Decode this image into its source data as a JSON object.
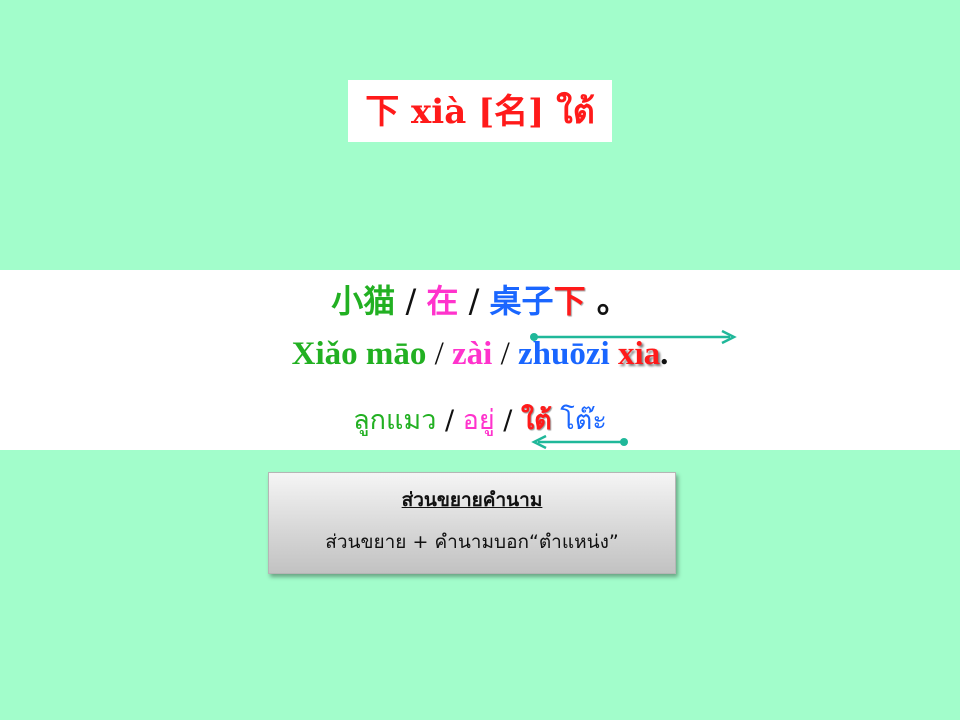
{
  "title": "下 xià [名] ใต้",
  "sentence": {
    "hanzi": {
      "subject": "小猫",
      "sep1": " / ",
      "verb": "在",
      "sep2": " / ",
      "object": "桌子",
      "localizer": "下",
      "end": " 。"
    },
    "pinyin": {
      "subject": "Xiǎo māo",
      "sep1": " / ",
      "verb": "zài",
      "sep2": " / ",
      "object": "zhuōzi",
      "localizer": "xia",
      "end": "."
    },
    "thai": {
      "subject": "ลูกแมว",
      "sep1": " / ",
      "verb": "อยู่",
      "sep2": " / ",
      "localizer": "ใต้",
      "object": "โต๊ะ"
    }
  },
  "note": {
    "title": "ส่วนขยายคำนาม",
    "body": "ส่วนขยาย + คำนามบอก“ตำแหน่ง”"
  },
  "colors": {
    "background": "#a2fdcb",
    "subject": "#22b022",
    "verb": "#ff33cc",
    "object": "#1a66ff",
    "localizer": "#ff1a1a",
    "arrow": "#20b89a"
  }
}
